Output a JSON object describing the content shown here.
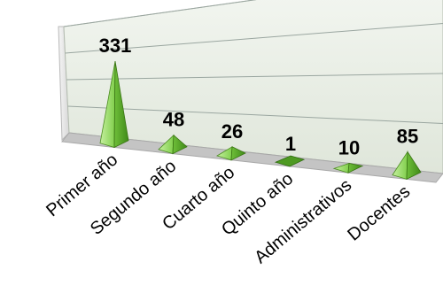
{
  "chart_data": {
    "type": "bar",
    "style": "3d-pyramid",
    "title": "",
    "xlabel": "",
    "ylabel": "",
    "categories": [
      "Primer año",
      "Segundo año",
      "Cuarto año",
      "Quinto año",
      "Administrativos",
      "Docentes"
    ],
    "values": [
      331,
      48,
      26,
      1,
      10,
      85
    ],
    "data_labels": [
      "331",
      "48",
      "26",
      "1",
      "10",
      "85"
    ],
    "ylim": [
      0,
      400
    ],
    "grid": true,
    "legend": "none",
    "colors": {
      "pyramid_light": "#9ee070",
      "pyramid_dark": "#4e9a22",
      "floor": "#c4c4c4",
      "wall": "#e6ece2",
      "gridline": "#9aa6a0"
    }
  }
}
